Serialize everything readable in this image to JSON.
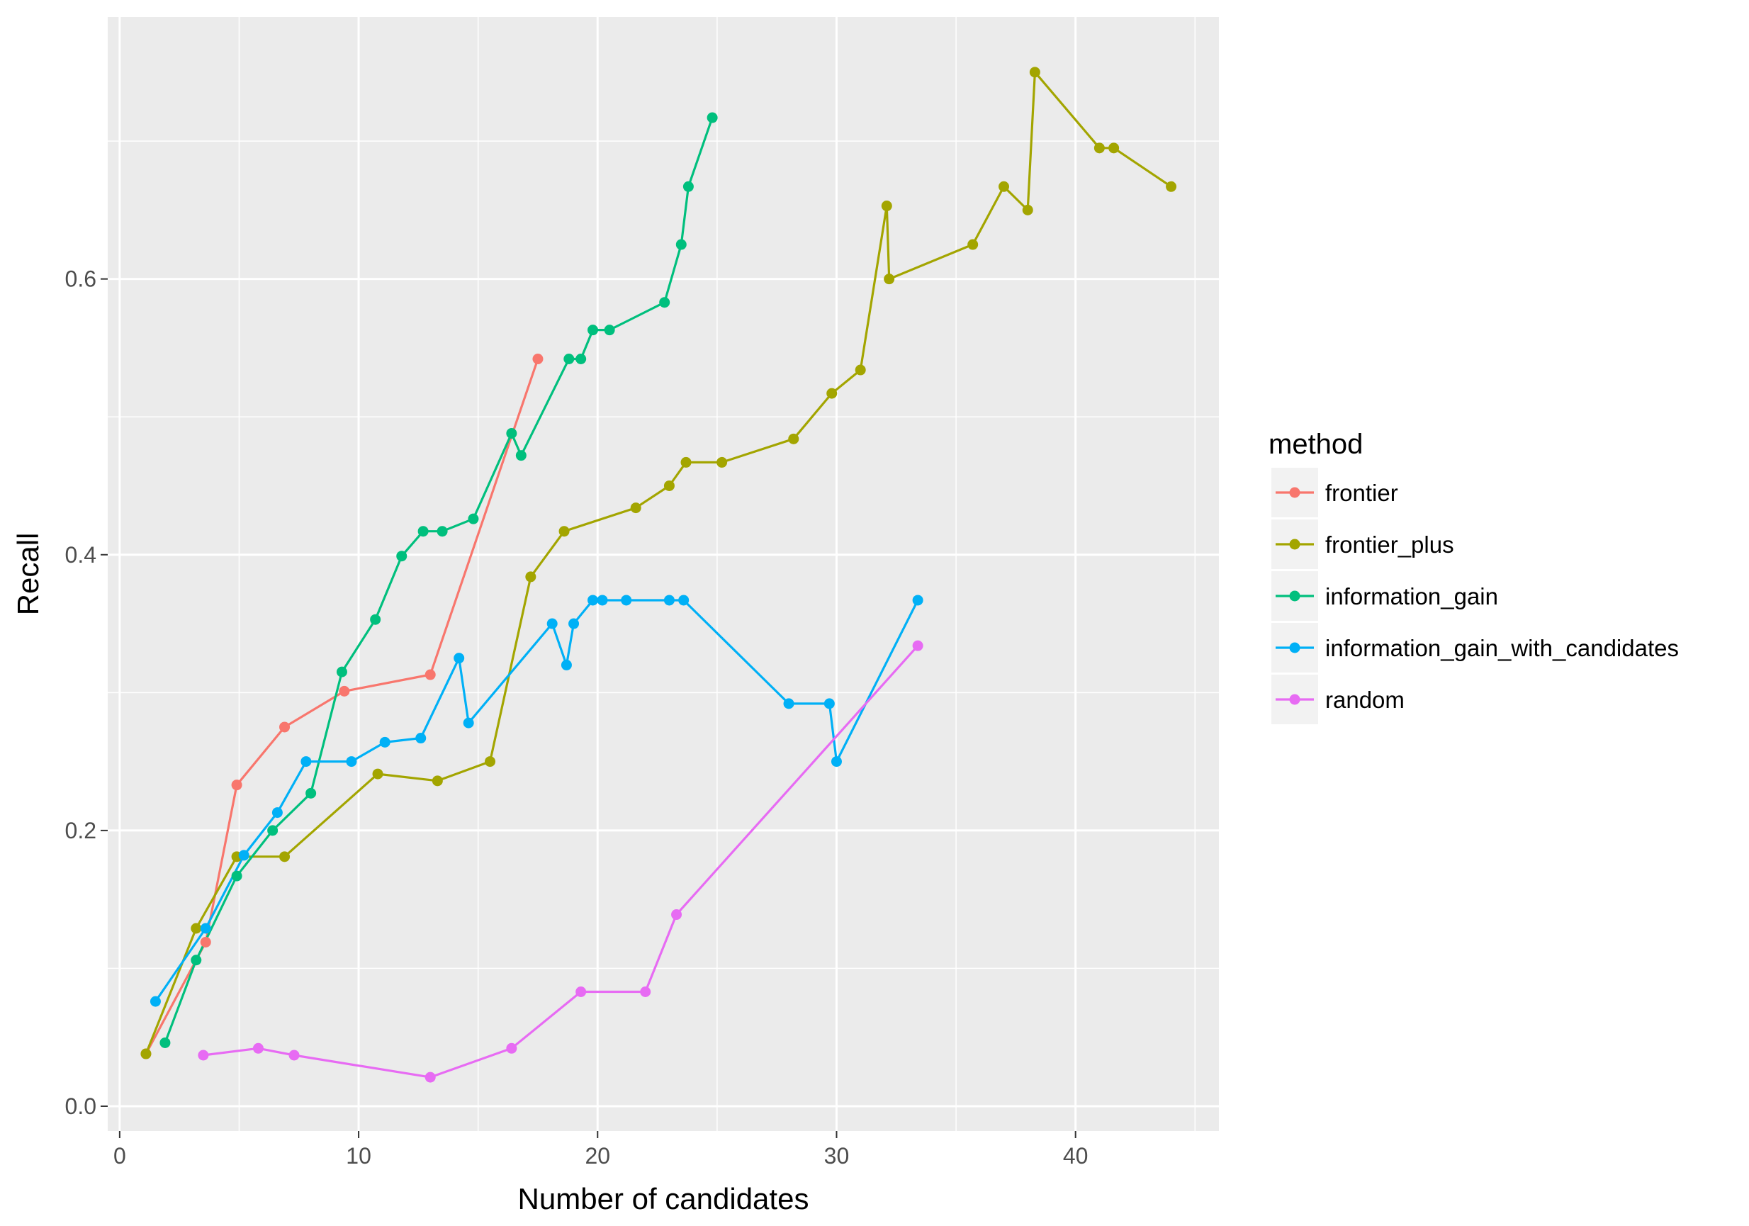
{
  "chart_data": {
    "type": "line",
    "xlabel": "Number of candidates",
    "ylabel": "Recall",
    "xlim": [
      -0.5,
      46
    ],
    "ylim": [
      -0.018,
      0.79
    ],
    "xticks": [
      0,
      10,
      20,
      30,
      40
    ],
    "yticks": [
      0.0,
      0.2,
      0.4,
      0.6
    ],
    "xtick_labels": [
      "0",
      "10",
      "20",
      "30",
      "40"
    ],
    "ytick_labels": [
      "0.0",
      "0.2",
      "0.4",
      "0.6"
    ],
    "grid": true,
    "legend": {
      "title": "method",
      "placement": "right"
    },
    "series": [
      {
        "name": "frontier",
        "color": "#F8766D",
        "x": [
          1.1,
          3.6,
          4.9,
          6.9,
          9.4,
          13.0,
          17.5
        ],
        "y": [
          0.038,
          0.119,
          0.233,
          0.275,
          0.301,
          0.313,
          0.542
        ]
      },
      {
        "name": "frontier_plus",
        "color": "#A3A500",
        "x": [
          1.1,
          3.2,
          4.9,
          6.9,
          10.8,
          13.3,
          15.5,
          17.2,
          18.6,
          21.6,
          23.0,
          23.7,
          25.2,
          28.2,
          29.8,
          31.0,
          32.1,
          32.2,
          35.7,
          37.0,
          38.0,
          38.3,
          41.0,
          41.6,
          44.0
        ],
        "y": [
          0.038,
          0.129,
          0.181,
          0.181,
          0.241,
          0.236,
          0.25,
          0.384,
          0.417,
          0.434,
          0.45,
          0.467,
          0.467,
          0.484,
          0.517,
          0.534,
          0.653,
          0.6,
          0.625,
          0.667,
          0.65,
          0.75,
          0.695,
          0.695,
          0.667
        ]
      },
      {
        "name": "information_gain",
        "color": "#00BF7D",
        "x": [
          1.9,
          3.2,
          4.9,
          6.4,
          8.0,
          9.3,
          10.7,
          11.8,
          12.7,
          13.5,
          14.8,
          16.4,
          16.8,
          18.8,
          19.3,
          19.8,
          20.5,
          22.8,
          23.5,
          23.8,
          24.8
        ],
        "y": [
          0.046,
          0.106,
          0.167,
          0.2,
          0.227,
          0.315,
          0.353,
          0.399,
          0.417,
          0.417,
          0.426,
          0.488,
          0.472,
          0.542,
          0.542,
          0.563,
          0.563,
          0.583,
          0.625,
          0.667,
          0.717
        ]
      },
      {
        "name": "information_gain_with_candidates",
        "color": "#00B0F6",
        "x": [
          1.5,
          3.6,
          5.2,
          6.6,
          7.8,
          9.7,
          11.1,
          12.6,
          14.2,
          14.6,
          18.1,
          18.7,
          19.0,
          19.8,
          20.2,
          21.2,
          23.0,
          23.6,
          28.0,
          29.7,
          30.0,
          33.4
        ],
        "y": [
          0.076,
          0.129,
          0.182,
          0.213,
          0.25,
          0.25,
          0.264,
          0.267,
          0.325,
          0.278,
          0.35,
          0.32,
          0.35,
          0.367,
          0.367,
          0.367,
          0.367,
          0.367,
          0.292,
          0.292,
          0.25,
          0.367
        ]
      },
      {
        "name": "random",
        "color": "#E76BF3",
        "x": [
          3.5,
          5.8,
          7.3,
          13.0,
          16.4,
          19.3,
          22.0,
          23.3,
          33.4
        ],
        "y": [
          0.037,
          0.042,
          0.037,
          0.021,
          0.042,
          0.083,
          0.083,
          0.139,
          0.334
        ]
      }
    ]
  }
}
